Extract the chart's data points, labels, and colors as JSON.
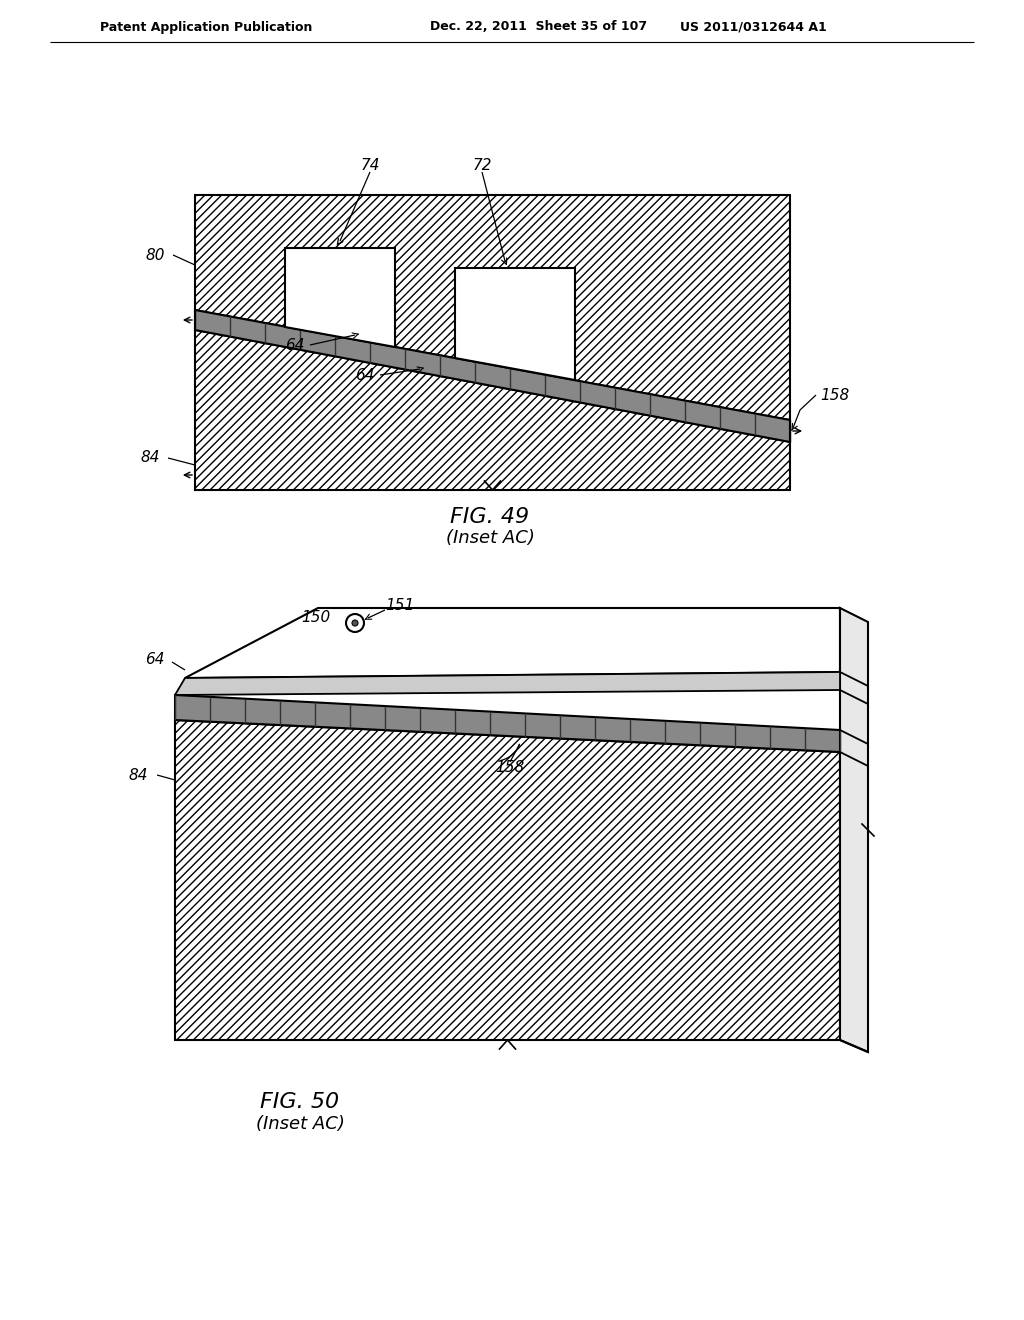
{
  "page_header_left": "Patent Application Publication",
  "page_header_mid": "Dec. 22, 2011  Sheet 35 of 107",
  "page_header_right": "US 2011/0312644 A1",
  "fig49_title": "FIG. 49",
  "fig49_subtitle": "(Inset AC)",
  "fig50_title": "FIG. 50",
  "fig50_subtitle": "(Inset AC)",
  "bg_color": "#ffffff"
}
